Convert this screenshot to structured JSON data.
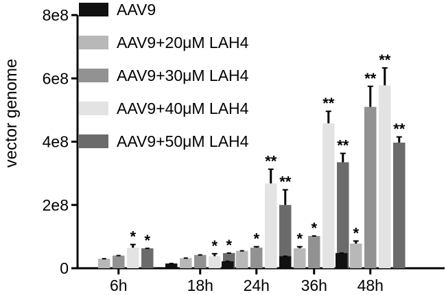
{
  "chart_data": {
    "type": "bar",
    "title": "",
    "xlabel": "",
    "ylabel": "vector genome",
    "ylim": [
      0,
      800000000
    ],
    "yticks": [
      {
        "value": 0,
        "label": "0"
      },
      {
        "value": 200000000,
        "label": "2e8"
      },
      {
        "value": 400000000,
        "label": "4e8"
      },
      {
        "value": 600000000,
        "label": "6e8"
      },
      {
        "value": 800000000,
        "label": "8e8"
      }
    ],
    "categories": [
      "6h",
      "18h",
      "24h",
      "36h",
      "48h"
    ],
    "legend_position": "top-left",
    "grid": false,
    "series": [
      {
        "name": "AAV9",
        "color": "#111111",
        "values": [
          null,
          15000000,
          22000000,
          38000000,
          48000000
        ],
        "errors": [
          null,
          0,
          0,
          0,
          0
        ],
        "significance": [
          "",
          "",
          "",
          "",
          ""
        ]
      },
      {
        "name": "AAV9+20μM LAH4",
        "color": "#b8b8b8",
        "values": [
          30000000,
          32000000,
          55000000,
          63000000,
          78000000
        ],
        "errors": [
          0,
          0,
          0,
          5000000,
          8000000
        ],
        "significance": [
          "",
          "",
          "",
          "*",
          "*"
        ]
      },
      {
        "name": "AAV9+30μM LAH4",
        "color": "#929292",
        "values": [
          40000000,
          42000000,
          65000000,
          102000000,
          510000000
        ],
        "errors": [
          0,
          0,
          3000000,
          0,
          65000000
        ],
        "significance": [
          "",
          "",
          "*",
          "*",
          "**"
        ]
      },
      {
        "name": "AAV9+40μM LAH4",
        "color": "#e3e3e3",
        "values": [
          65000000,
          38000000,
          268000000,
          458000000,
          578000000
        ],
        "errors": [
          10000000,
          8000000,
          45000000,
          38000000,
          55000000
        ],
        "significance": [
          "*",
          "*",
          "**",
          "**",
          "**"
        ]
      },
      {
        "name": "AAV9+50μM LAH4",
        "color": "#6b6b6b",
        "values": [
          63000000,
          48000000,
          200000000,
          335000000,
          397000000
        ],
        "errors": [
          0,
          0,
          48000000,
          28000000,
          18000000
        ],
        "significance": [
          "*",
          "*",
          "**",
          "**",
          "**"
        ]
      }
    ]
  }
}
